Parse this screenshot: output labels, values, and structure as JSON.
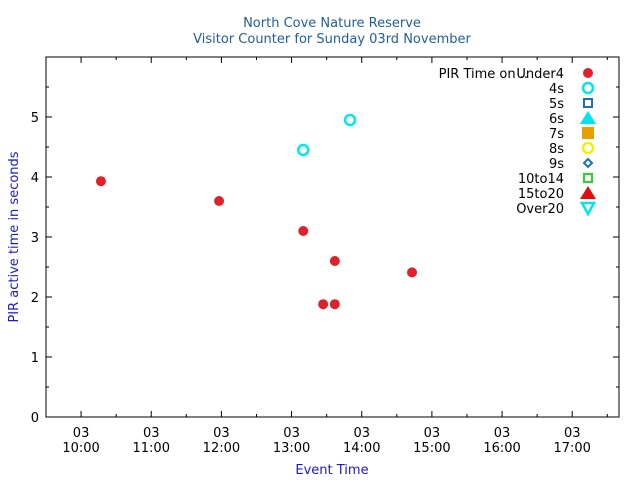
{
  "chart_data": {
    "type": "scatter",
    "title": "North Cove Nature Reserve",
    "subtitle": "Visitor Counter for Sunday 03rd November",
    "xlabel": "Event Time",
    "ylabel": "PIR active time in seconds",
    "xlim": [
      "09:30",
      "17:40"
    ],
    "ylim": [
      0,
      6
    ],
    "yticks": [
      0,
      1,
      2,
      3,
      4,
      5
    ],
    "xticks": [
      {
        "time": "10:00",
        "date": "03",
        "clock": "10:00"
      },
      {
        "time": "11:00",
        "date": "03",
        "clock": "11:00"
      },
      {
        "time": "12:00",
        "date": "03",
        "clock": "12:00"
      },
      {
        "time": "13:00",
        "date": "03",
        "clock": "13:00"
      },
      {
        "time": "14:00",
        "date": "03",
        "clock": "14:00"
      },
      {
        "time": "15:00",
        "date": "03",
        "clock": "15:00"
      },
      {
        "time": "16:00",
        "date": "03",
        "clock": "16:00"
      },
      {
        "time": "17:00",
        "date": "03",
        "clock": "17:00"
      }
    ],
    "grid": false,
    "legend_position": "top-right",
    "legend_title": "PIR Time on ..",
    "series": [
      {
        "name": "Under4",
        "marker": "circle-filled",
        "color": "#e0202a",
        "points": [
          {
            "x": "10:17",
            "y": 3.93
          },
          {
            "x": "11:58",
            "y": 3.6
          },
          {
            "x": "13:10",
            "y": 3.1
          },
          {
            "x": "13:37",
            "y": 2.6
          },
          {
            "x": "14:43",
            "y": 2.41
          },
          {
            "x": "13:27",
            "y": 1.88
          },
          {
            "x": "13:37",
            "y": 1.88
          }
        ]
      },
      {
        "name": "4s",
        "marker": "circle-open",
        "color": "#00e5ee",
        "points": [
          {
            "x": "13:10",
            "y": 4.45
          },
          {
            "x": "13:50",
            "y": 4.95
          }
        ]
      },
      {
        "name": "5s",
        "marker": "square-open",
        "color": "#1f6fbf",
        "points": []
      },
      {
        "name": "6s",
        "marker": "triangle-up-filled",
        "color": "#00e5ee",
        "points": []
      },
      {
        "name": "7s",
        "marker": "square-filled",
        "color": "#e6a000",
        "points": []
      },
      {
        "name": "8s",
        "marker": "circle-open",
        "color": "#f0f000",
        "points": []
      },
      {
        "name": "9s",
        "marker": "diamond-open",
        "color": "#1f6fbf",
        "points": []
      },
      {
        "name": "10to14",
        "marker": "square-open",
        "color": "#20dd20",
        "points": []
      },
      {
        "name": "15to20",
        "marker": "triangle-up-filled",
        "color": "#e01010",
        "points": []
      },
      {
        "name": "Over20",
        "marker": "triangle-down-open",
        "color": "#00e5ee",
        "points": []
      }
    ]
  }
}
